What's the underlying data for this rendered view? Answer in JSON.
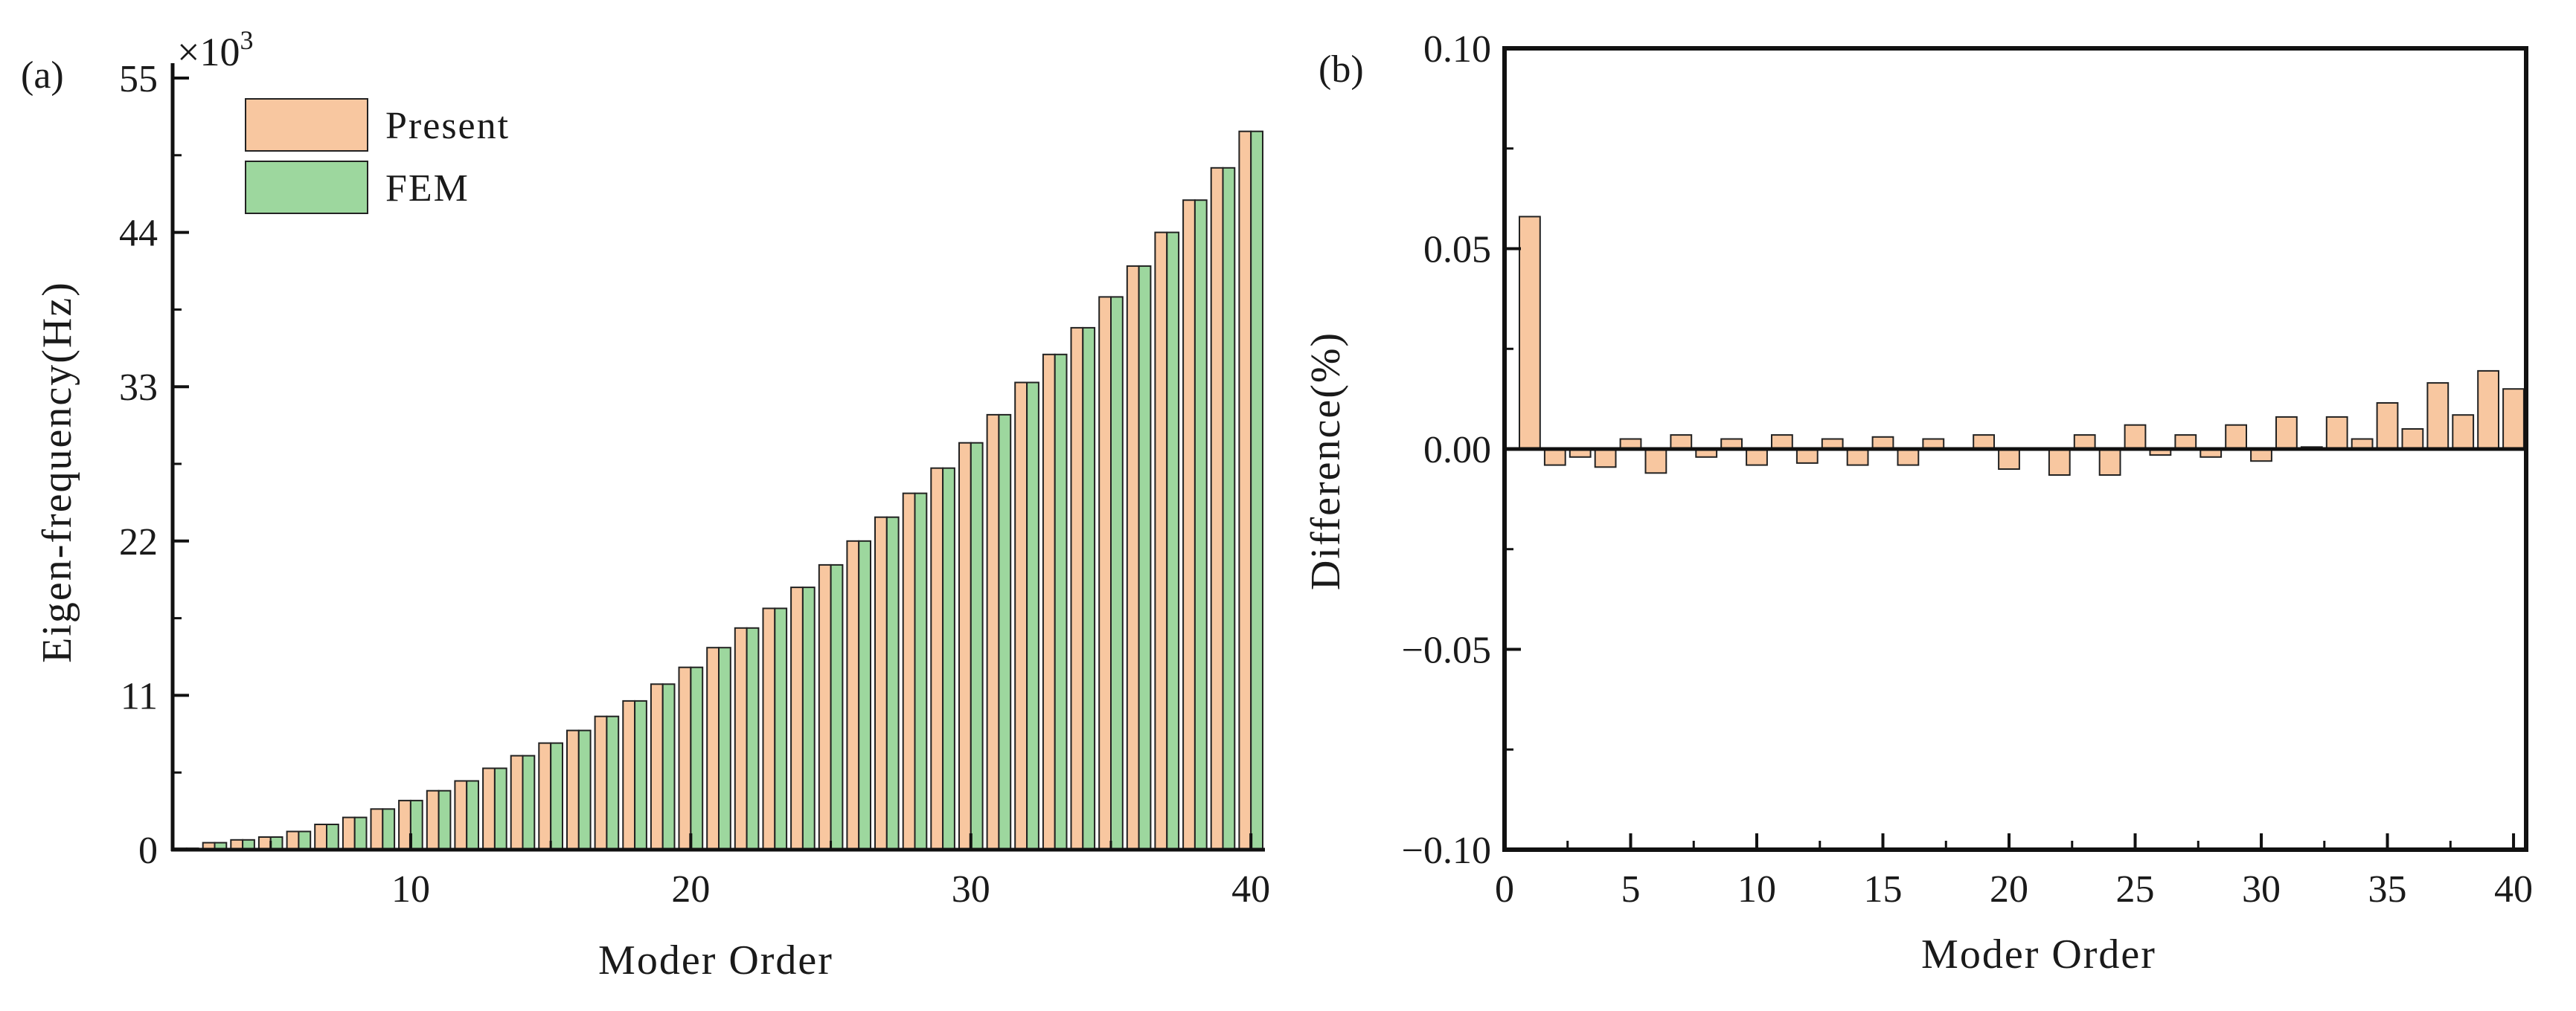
{
  "chart_data": [
    {
      "type": "bar",
      "panel_label": "(a)",
      "xlabel": "Moder Order",
      "ylabel": "Eigen-frequency(Hz)",
      "y_multiplier": "×10",
      "y_multiplier_exp": "3",
      "ylim": [
        0,
        55
      ],
      "yticks": [
        0,
        11,
        22,
        33,
        44,
        55
      ],
      "xlim": [
        1.5,
        40.5
      ],
      "xticks": [
        10,
        20,
        30,
        40
      ],
      "legend_position": "top-left",
      "colors": {
        "present": "#f8c7a0",
        "fem": "#9dd79e",
        "edge": "#222222"
      },
      "series": [
        {
          "name": "Present",
          "x": [
            1,
            2,
            3,
            4,
            5,
            6,
            7,
            8,
            9,
            10,
            11,
            12,
            13,
            14,
            15,
            16,
            17,
            18,
            19,
            20,
            21,
            22,
            23,
            24,
            25,
            26,
            27,
            28,
            29,
            30,
            31,
            32,
            33,
            34,
            35,
            36,
            37,
            38,
            39,
            40
          ],
          "values": [
            0.05,
            0.1,
            0.5,
            0.7,
            0.9,
            1.3,
            1.8,
            2.3,
            2.9,
            3.5,
            4.2,
            4.9,
            5.8,
            6.7,
            7.6,
            8.5,
            9.5,
            10.6,
            11.8,
            13.0,
            14.4,
            15.8,
            17.2,
            18.7,
            20.3,
            22.0,
            23.7,
            25.4,
            27.2,
            29.0,
            31.0,
            33.3,
            35.3,
            37.2,
            39.4,
            41.6,
            44.0,
            46.3,
            48.6,
            51.2
          ]
        },
        {
          "name": "FEM",
          "x": [
            1,
            2,
            3,
            4,
            5,
            6,
            7,
            8,
            9,
            10,
            11,
            12,
            13,
            14,
            15,
            16,
            17,
            18,
            19,
            20,
            21,
            22,
            23,
            24,
            25,
            26,
            27,
            28,
            29,
            30,
            31,
            32,
            33,
            34,
            35,
            36,
            37,
            38,
            39,
            40
          ],
          "values": [
            0.05,
            0.1,
            0.5,
            0.7,
            0.9,
            1.3,
            1.8,
            2.3,
            2.9,
            3.5,
            4.2,
            4.9,
            5.8,
            6.7,
            7.6,
            8.5,
            9.5,
            10.6,
            11.8,
            13.0,
            14.4,
            15.8,
            17.2,
            18.7,
            20.3,
            22.0,
            23.7,
            25.4,
            27.2,
            29.0,
            31.0,
            33.3,
            35.3,
            37.2,
            39.4,
            41.6,
            44.0,
            46.3,
            48.6,
            51.2
          ]
        }
      ]
    },
    {
      "type": "bar",
      "panel_label": "(b)",
      "xlabel": "Moder Order",
      "ylabel": "Difference(%)",
      "ylim": [
        -0.1,
        0.1
      ],
      "yticks": [
        -0.1,
        -0.05,
        0,
        0.05,
        0.1
      ],
      "ytick_labels": [
        "−0.10",
        "−0.05",
        "0.00",
        "0.05",
        "0.10"
      ],
      "xlim": [
        0,
        40.5
      ],
      "xticks": [
        0,
        5,
        10,
        15,
        20,
        25,
        30,
        35,
        40
      ],
      "colors": {
        "bar": "#f8c7a0",
        "edge": "#222222"
      },
      "x": [
        1,
        2,
        3,
        4,
        5,
        6,
        7,
        8,
        9,
        10,
        11,
        12,
        13,
        14,
        15,
        16,
        17,
        18,
        19,
        20,
        21,
        22,
        23,
        24,
        25,
        26,
        27,
        28,
        29,
        30,
        31,
        32,
        33,
        34,
        35,
        36,
        37,
        38,
        39,
        40
      ],
      "values": [
        0.058,
        -0.004,
        -0.002,
        -0.0045,
        0.0025,
        -0.006,
        0.0035,
        -0.002,
        0.0025,
        -0.004,
        0.0035,
        -0.0035,
        0.0025,
        -0.004,
        0.003,
        -0.004,
        0.0025,
        0,
        0.0035,
        -0.005,
        0,
        -0.0065,
        0.0035,
        -0.0065,
        0.006,
        -0.0015,
        0.0035,
        -0.002,
        0.006,
        -0.003,
        0.008,
        0.0005,
        0.008,
        0.0025,
        0.0115,
        0.005,
        0.0165,
        0.0085,
        0.0195,
        0.015
      ]
    }
  ]
}
